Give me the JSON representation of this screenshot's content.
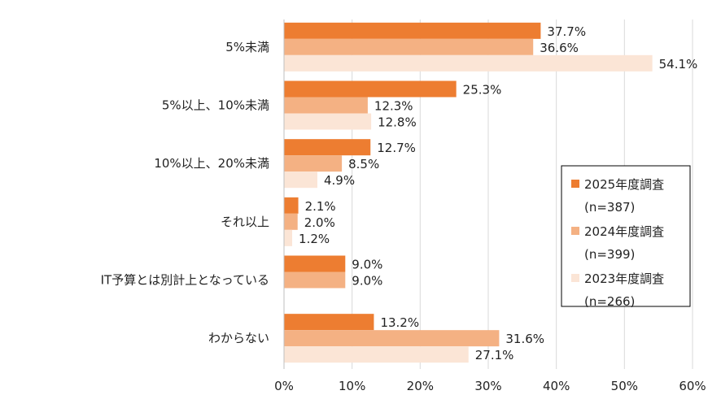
{
  "chart_data": {
    "type": "bar",
    "orientation": "horizontal",
    "title": "",
    "xlabel": "",
    "ylabel": "",
    "xlim": [
      0,
      60
    ],
    "x_ticks": [
      "0%",
      "10%",
      "20%",
      "30%",
      "40%",
      "50%",
      "60%"
    ],
    "grid": true,
    "legend_position": "right",
    "categories": [
      "5%未満",
      "5%以上、10%未満",
      "10%以上、20%未満",
      "それ以上",
      "IT予算とは別計上となっている",
      "わからない"
    ],
    "series": [
      {
        "name": "2025年度調査",
        "sample": "(n=387)",
        "color": "#ED7D31",
        "values": [
          37.7,
          25.3,
          12.7,
          2.1,
          9.0,
          13.2
        ],
        "labels": [
          "37.7%",
          "25.3%",
          "12.7%",
          "2.1%",
          "9.0%",
          "13.2%"
        ]
      },
      {
        "name": "2024年度調査",
        "sample": "(n=399)",
        "color": "#F4B183",
        "values": [
          36.6,
          12.3,
          8.5,
          2.0,
          9.0,
          31.6
        ],
        "labels": [
          "36.6%",
          "12.3%",
          "8.5%",
          "2.0%",
          "9.0%",
          "31.6%"
        ]
      },
      {
        "name": "2023年度調査",
        "sample": "(n=266)",
        "color": "#FBE5D6",
        "values": [
          54.1,
          12.8,
          4.9,
          1.2,
          null,
          27.1
        ],
        "labels": [
          "54.1%",
          "12.8%",
          "4.9%",
          "1.2%",
          null,
          "27.1%"
        ]
      }
    ]
  }
}
